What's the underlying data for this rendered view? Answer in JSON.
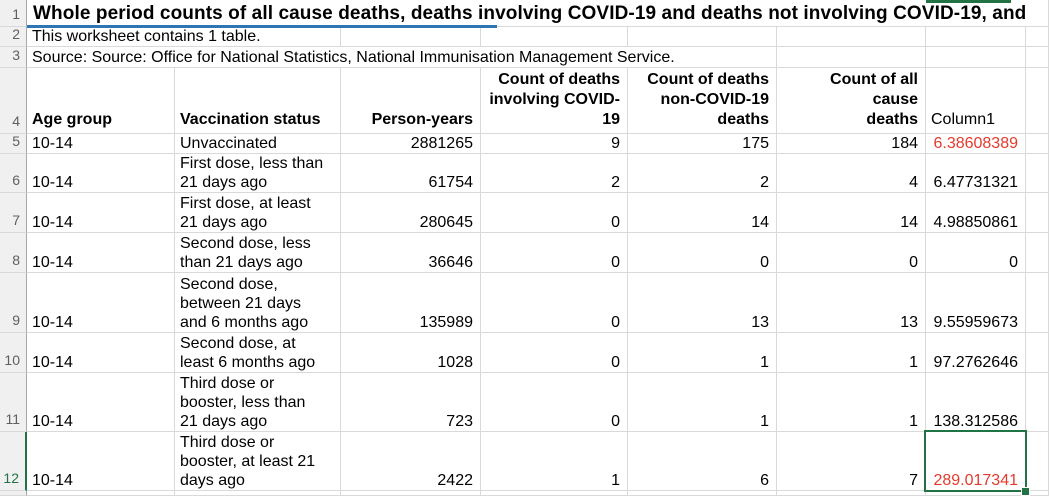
{
  "app": {
    "kind": "spreadsheet-worksheet"
  },
  "colors": {
    "selection_green": "#217346",
    "red_text": "#e43a2b",
    "title_underline_blue": "#2e75b6",
    "gridline": "#d9d9d9",
    "row_header_bg": "#f0f0f0"
  },
  "static_row_numbers": [
    "1",
    "2",
    "3",
    "4"
  ],
  "title_row": {
    "row": "1",
    "title": "Whole period counts of all cause deaths, deaths involving COVID-19 and deaths not involving COVID-19, and"
  },
  "notes": [
    {
      "row": "2",
      "text": "This worksheet contains 1 table."
    },
    {
      "row": "3",
      "text": "Source: Source: Office for National Statistics, National Immunisation Management Service."
    }
  ],
  "header_row": {
    "row": "4",
    "age": "Age group",
    "status": "Vaccination status",
    "person_years": "Person-years",
    "covid": "Count of deaths\ninvolving COVID-\n19",
    "non_covid": "Count of deaths\nnon-COVID-19\ndeaths",
    "all_cause": "Count of all cause\ndeaths",
    "column1": "Column1"
  },
  "data_rows": [
    {
      "row": "5",
      "age": "10-14",
      "status": "Unvaccinated",
      "person_years": "2881265",
      "covid_deaths": "9",
      "non_covid_deaths": "175",
      "all_cause_deaths": "184",
      "column1": "6.38608389",
      "column1_red": true,
      "selected": false
    },
    {
      "row": "6",
      "age": "10-14",
      "status": "First dose, less than\n21 days ago",
      "person_years": "61754",
      "covid_deaths": "2",
      "non_covid_deaths": "2",
      "all_cause_deaths": "4",
      "column1": "6.47731321",
      "column1_red": false,
      "selected": false
    },
    {
      "row": "7",
      "age": "10-14",
      "status": "First dose, at least\n21 days ago",
      "person_years": "280645",
      "covid_deaths": "0",
      "non_covid_deaths": "14",
      "all_cause_deaths": "14",
      "column1": "4.98850861",
      "column1_red": false,
      "selected": false
    },
    {
      "row": "8",
      "age": "10-14",
      "status": "Second dose, less\nthan 21 days ago",
      "person_years": "36646",
      "covid_deaths": "0",
      "non_covid_deaths": "0",
      "all_cause_deaths": "0",
      "column1": "0",
      "column1_red": false,
      "selected": false
    },
    {
      "row": "9",
      "age": "10-14",
      "status": "Second dose,\nbetween 21 days\nand 6 months ago",
      "person_years": "135989",
      "covid_deaths": "0",
      "non_covid_deaths": "13",
      "all_cause_deaths": "13",
      "column1": "9.55959673",
      "column1_red": false,
      "selected": false
    },
    {
      "row": "10",
      "age": "10-14",
      "status": "Second dose, at\nleast 6 months ago",
      "person_years": "1028",
      "covid_deaths": "0",
      "non_covid_deaths": "1",
      "all_cause_deaths": "1",
      "column1": "97.2762646",
      "column1_red": false,
      "selected": false
    },
    {
      "row": "11",
      "age": "10-14",
      "status": "Third dose or\nbooster, less than\n21 days ago",
      "person_years": "723",
      "covid_deaths": "0",
      "non_covid_deaths": "1",
      "all_cause_deaths": "1",
      "column1": "138.312586",
      "column1_red": false,
      "selected": false
    },
    {
      "row": "12",
      "age": "10-14",
      "status": "Third dose or\nbooster, at least 21\ndays ago",
      "person_years": "2422",
      "covid_deaths": "1",
      "non_covid_deaths": "6",
      "all_cause_deaths": "7",
      "column1": "289.017341",
      "column1_red": true,
      "selected": true
    }
  ],
  "selection": {
    "selected_row": "12",
    "selected_column_label": "Column1",
    "selected_value": "289.017341"
  }
}
